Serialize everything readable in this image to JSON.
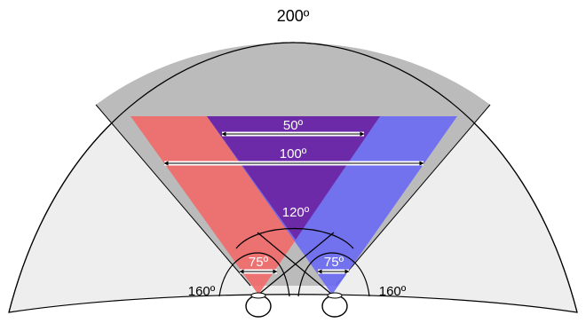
{
  "colors": {
    "background": "#ffffff",
    "outer_field": "#eeeeee",
    "binocular_field": "#bbbbbb",
    "left_eye_field": "#f26a6a",
    "right_eye_field": "#6a6af5",
    "overlap_field": "#6c2aa8",
    "outline": "#000000",
    "label_dark": "#000000",
    "label_light": "#ffffff"
  },
  "labels": {
    "total_field": "200º",
    "binocular_focus": "50º",
    "binocular_wide": "100º",
    "binocular_overlap": "120º",
    "left_eye_focus": "75º",
    "right_eye_focus": "75º",
    "left_eye_field": "160º",
    "right_eye_field": "160º"
  }
}
